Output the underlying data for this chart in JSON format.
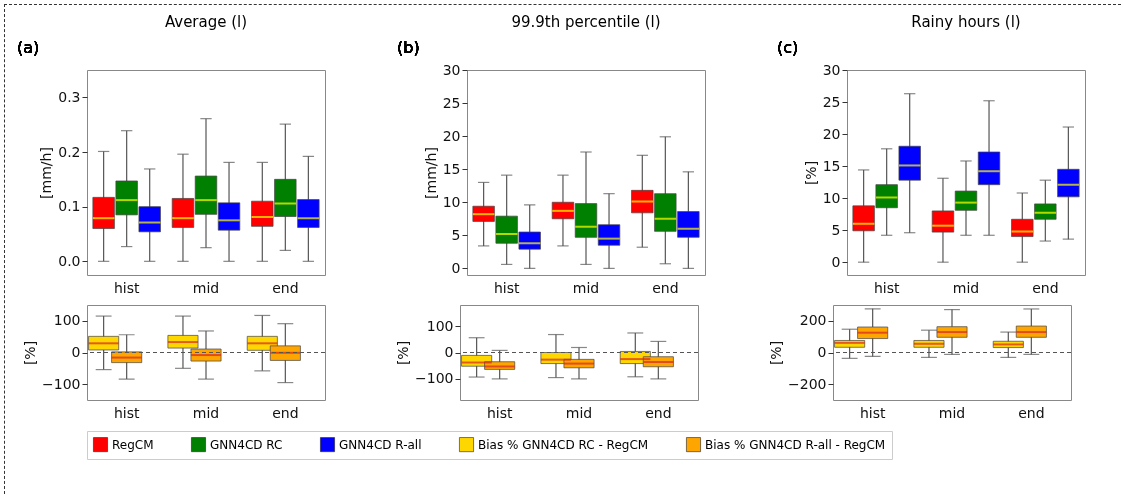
{
  "chart_data": [
    {
      "type": "box",
      "title": "Average (l)",
      "ylabel": "[mm/h]",
      "annotations": [
        "(a)"
      ],
      "categories": [
        "hist",
        "mid",
        "end"
      ],
      "ylim": [
        -0.025,
        0.35
      ],
      "yticks": [
        {
          "value": 0,
          "label": "0.0"
        },
        0.1,
        0.2,
        0.3
      ],
      "grid": false,
      "legend": "bottom",
      "series": [
        {
          "name": "RegCM",
          "color": "#ff0000",
          "boxes": [
            {
              "low": 0,
              "q1": 0.06,
              "median": 0.079,
              "q3": 0.117,
              "high": 0.201
            },
            {
              "low": 0,
              "q1": 0.062,
              "median": 0.079,
              "q3": 0.115,
              "high": 0.196
            },
            {
              "low": 0,
              "q1": 0.064,
              "median": 0.081,
              "q3": 0.11,
              "high": 0.181
            }
          ]
        },
        {
          "name": "GNN4CD RC",
          "color": "#008000",
          "boxes": [
            {
              "low": 0.027,
              "q1": 0.085,
              "median": 0.112,
              "q3": 0.147,
              "high": 0.239
            },
            {
              "low": 0.025,
              "q1": 0.086,
              "median": 0.112,
              "q3": 0.156,
              "high": 0.261
            },
            {
              "low": 0.02,
              "q1": 0.082,
              "median": 0.106,
              "q3": 0.15,
              "high": 0.251
            }
          ]
        },
        {
          "name": "GNN4CD R-all",
          "color": "#0000ff",
          "boxes": [
            {
              "low": 0,
              "q1": 0.054,
              "median": 0.071,
              "q3": 0.1,
              "high": 0.169
            },
            {
              "low": 0,
              "q1": 0.057,
              "median": 0.075,
              "q3": 0.107,
              "high": 0.181
            },
            {
              "low": 0,
              "q1": 0.062,
              "median": 0.079,
              "q3": 0.113,
              "high": 0.192
            }
          ]
        }
      ]
    },
    {
      "type": "box",
      "title": "99.9th percentile (l)",
      "ylabel": "[mm/h]",
      "annotations": [
        "(b)"
      ],
      "categories": [
        "hist",
        "mid",
        "end"
      ],
      "ylim": [
        -1,
        30
      ],
      "yticks": [
        0,
        5,
        10,
        15,
        20,
        25,
        30
      ],
      "grid": false,
      "legend": "bottom",
      "series": [
        {
          "name": "RegCM",
          "color": "#ff0000",
          "boxes": [
            {
              "low": 3.4,
              "q1": 7.1,
              "median": 8.2,
              "q3": 9.4,
              "high": 13.0
            },
            {
              "low": 3.4,
              "q1": 7.5,
              "median": 8.7,
              "q3": 10.0,
              "high": 14.1
            },
            {
              "low": 3.2,
              "q1": 8.4,
              "median": 10.1,
              "q3": 11.8,
              "high": 17.1
            }
          ]
        },
        {
          "name": "GNN4CD RC",
          "color": "#008000",
          "boxes": [
            {
              "low": 0.6,
              "q1": 3.8,
              "median": 5.2,
              "q3": 7.9,
              "high": 14.1
            },
            {
              "low": 0.6,
              "q1": 4.7,
              "median": 6.3,
              "q3": 9.8,
              "high": 17.6
            },
            {
              "low": 0.7,
              "q1": 5.6,
              "median": 7.5,
              "q3": 11.3,
              "high": 19.9
            }
          ]
        },
        {
          "name": "GNN4CD R-all",
          "color": "#0000ff",
          "boxes": [
            {
              "low": 0,
              "q1": 2.9,
              "median": 3.8,
              "q3": 5.5,
              "high": 9.6
            },
            {
              "low": 0,
              "q1": 3.5,
              "median": 4.5,
              "q3": 6.6,
              "high": 11.3
            },
            {
              "low": 0,
              "q1": 4.7,
              "median": 6.0,
              "q3": 8.6,
              "high": 14.6
            }
          ]
        }
      ]
    },
    {
      "type": "box",
      "title": "Rainy hours (l)",
      "ylabel": "[%]",
      "annotations": [
        "(c)"
      ],
      "categories": [
        "hist",
        "mid",
        "end"
      ],
      "ylim": [
        -2,
        30
      ],
      "yticks": [
        0,
        5,
        10,
        15,
        20,
        25,
        30
      ],
      "grid": false,
      "legend": "bottom",
      "series": [
        {
          "name": "RegCM",
          "color": "#ff0000",
          "boxes": [
            {
              "low": 0,
              "q1": 4.9,
              "median": 6.0,
              "q3": 8.8,
              "high": 14.4
            },
            {
              "low": 0,
              "q1": 4.7,
              "median": 5.7,
              "q3": 8.0,
              "high": 13.1
            },
            {
              "low": 0,
              "q1": 4.0,
              "median": 4.8,
              "q3": 6.7,
              "high": 10.8
            }
          ]
        },
        {
          "name": "GNN4CD RC",
          "color": "#008000",
          "boxes": [
            {
              "low": 4.2,
              "q1": 8.5,
              "median": 10.1,
              "q3": 12.1,
              "high": 17.7
            },
            {
              "low": 4.2,
              "q1": 8.1,
              "median": 9.3,
              "q3": 11.1,
              "high": 15.8
            },
            {
              "low": 3.3,
              "q1": 6.7,
              "median": 7.7,
              "q3": 9.1,
              "high": 12.8
            }
          ]
        },
        {
          "name": "GNN4CD R-all",
          "color": "#0000ff",
          "boxes": [
            {
              "low": 4.6,
              "q1": 12.8,
              "median": 15.1,
              "q3": 18.1,
              "high": 26.3
            },
            {
              "low": 4.2,
              "q1": 12.1,
              "median": 14.2,
              "q3": 17.2,
              "high": 25.2
            },
            {
              "low": 3.6,
              "q1": 10.2,
              "median": 12.1,
              "q3": 14.5,
              "high": 21.1
            }
          ]
        }
      ]
    },
    {
      "type": "box",
      "ylabel": "[%]",
      "categories": [
        "hist",
        "mid",
        "end"
      ],
      "ylim": [
        -150,
        150
      ],
      "yticks": [
        {
          "value": -100,
          "label": "−100"
        },
        0,
        100
      ],
      "grid": false,
      "legend": "bottom",
      "ref_lines": [
        {
          "axis": "y",
          "value": 0,
          "line_style": "dashed"
        }
      ],
      "series": [
        {
          "name": "Bias % GNN4CD RC - RegCM",
          "color": "#ffd700",
          "boxes": [
            {
              "low": -54,
              "q1": 8,
              "median": 29,
              "q3": 51,
              "high": 115
            },
            {
              "low": -50,
              "q1": 14,
              "median": 33,
              "q3": 54,
              "high": 115
            },
            {
              "low": -58,
              "q1": 7,
              "median": 29,
              "q3": 51,
              "high": 117
            }
          ]
        },
        {
          "name": "Bias % GNN4CD R-all - RegCM",
          "color": "#ffa500",
          "boxes": [
            {
              "low": -84,
              "q1": -32,
              "median": -16,
              "q3": 2,
              "high": 56
            },
            {
              "low": -84,
              "q1": -27,
              "median": -8,
              "q3": 11,
              "high": 68
            },
            {
              "low": -95,
              "q1": -25,
              "median": -1,
              "q3": 21,
              "high": 91
            }
          ]
        }
      ]
    },
    {
      "type": "box",
      "ylabel": "[%]",
      "categories": [
        "hist",
        "mid",
        "end"
      ],
      "ylim": [
        -180,
        180
      ],
      "yticks": [
        {
          "value": -100,
          "label": "−100"
        },
        0,
        100
      ],
      "grid": false,
      "legend": "bottom",
      "ref_lines": [
        {
          "axis": "y",
          "value": 0,
          "line_style": "dashed"
        }
      ],
      "series": [
        {
          "name": "Bias % GNN4CD RC - RegCM",
          "color": "#ffd700",
          "boxes": [
            {
              "low": -93,
              "q1": -52,
              "median": -38,
              "q3": -11,
              "high": 56
            },
            {
              "low": -95,
              "q1": -42,
              "median": -27,
              "q3": 0,
              "high": 68
            },
            {
              "low": -92,
              "q1": -42,
              "median": -25,
              "q3": 4,
              "high": 74
            }
          ]
        },
        {
          "name": "Bias % GNN4CD R-all - RegCM",
          "color": "#ffa500",
          "boxes": [
            {
              "low": -100,
              "q1": -64,
              "median": -53,
              "q3": -35,
              "high": 8
            },
            {
              "low": -100,
              "q1": -58,
              "median": -42,
              "q3": -26,
              "high": 19
            },
            {
              "low": -100,
              "q1": -54,
              "median": -36,
              "q3": -16,
              "high": 42
            }
          ]
        }
      ]
    },
    {
      "type": "box",
      "ylabel": "[%]",
      "categories": [
        "hist",
        "mid",
        "end"
      ],
      "ylim": [
        -300,
        300
      ],
      "yticks": [
        {
          "value": -200,
          "label": "−200"
        },
        0,
        200
      ],
      "grid": false,
      "legend": "bottom",
      "ref_lines": [
        {
          "axis": "y",
          "value": 0,
          "line_style": "dashed"
        }
      ],
      "series": [
        {
          "name": "Bias % GNN4CD RC - RegCM",
          "color": "#ffd700",
          "boxes": [
            {
              "low": -37,
              "q1": 33,
              "median": 61,
              "q3": 76,
              "high": 147
            },
            {
              "low": -31,
              "q1": 33,
              "median": 55,
              "q3": 76,
              "high": 141
            },
            {
              "low": -31,
              "q1": 31,
              "median": 51,
              "q3": 71,
              "high": 129
            }
          ]
        },
        {
          "name": "Bias % GNN4CD R-all - RegCM",
          "color": "#ffa500",
          "boxes": [
            {
              "low": -25,
              "q1": 88,
              "median": 125,
              "q3": 161,
              "high": 276
            },
            {
              "low": -12,
              "q1": 96,
              "median": 129,
              "q3": 163,
              "high": 271
            },
            {
              "low": -12,
              "q1": 96,
              "median": 129,
              "q3": 167,
              "high": 275
            }
          ]
        }
      ]
    }
  ]
}
